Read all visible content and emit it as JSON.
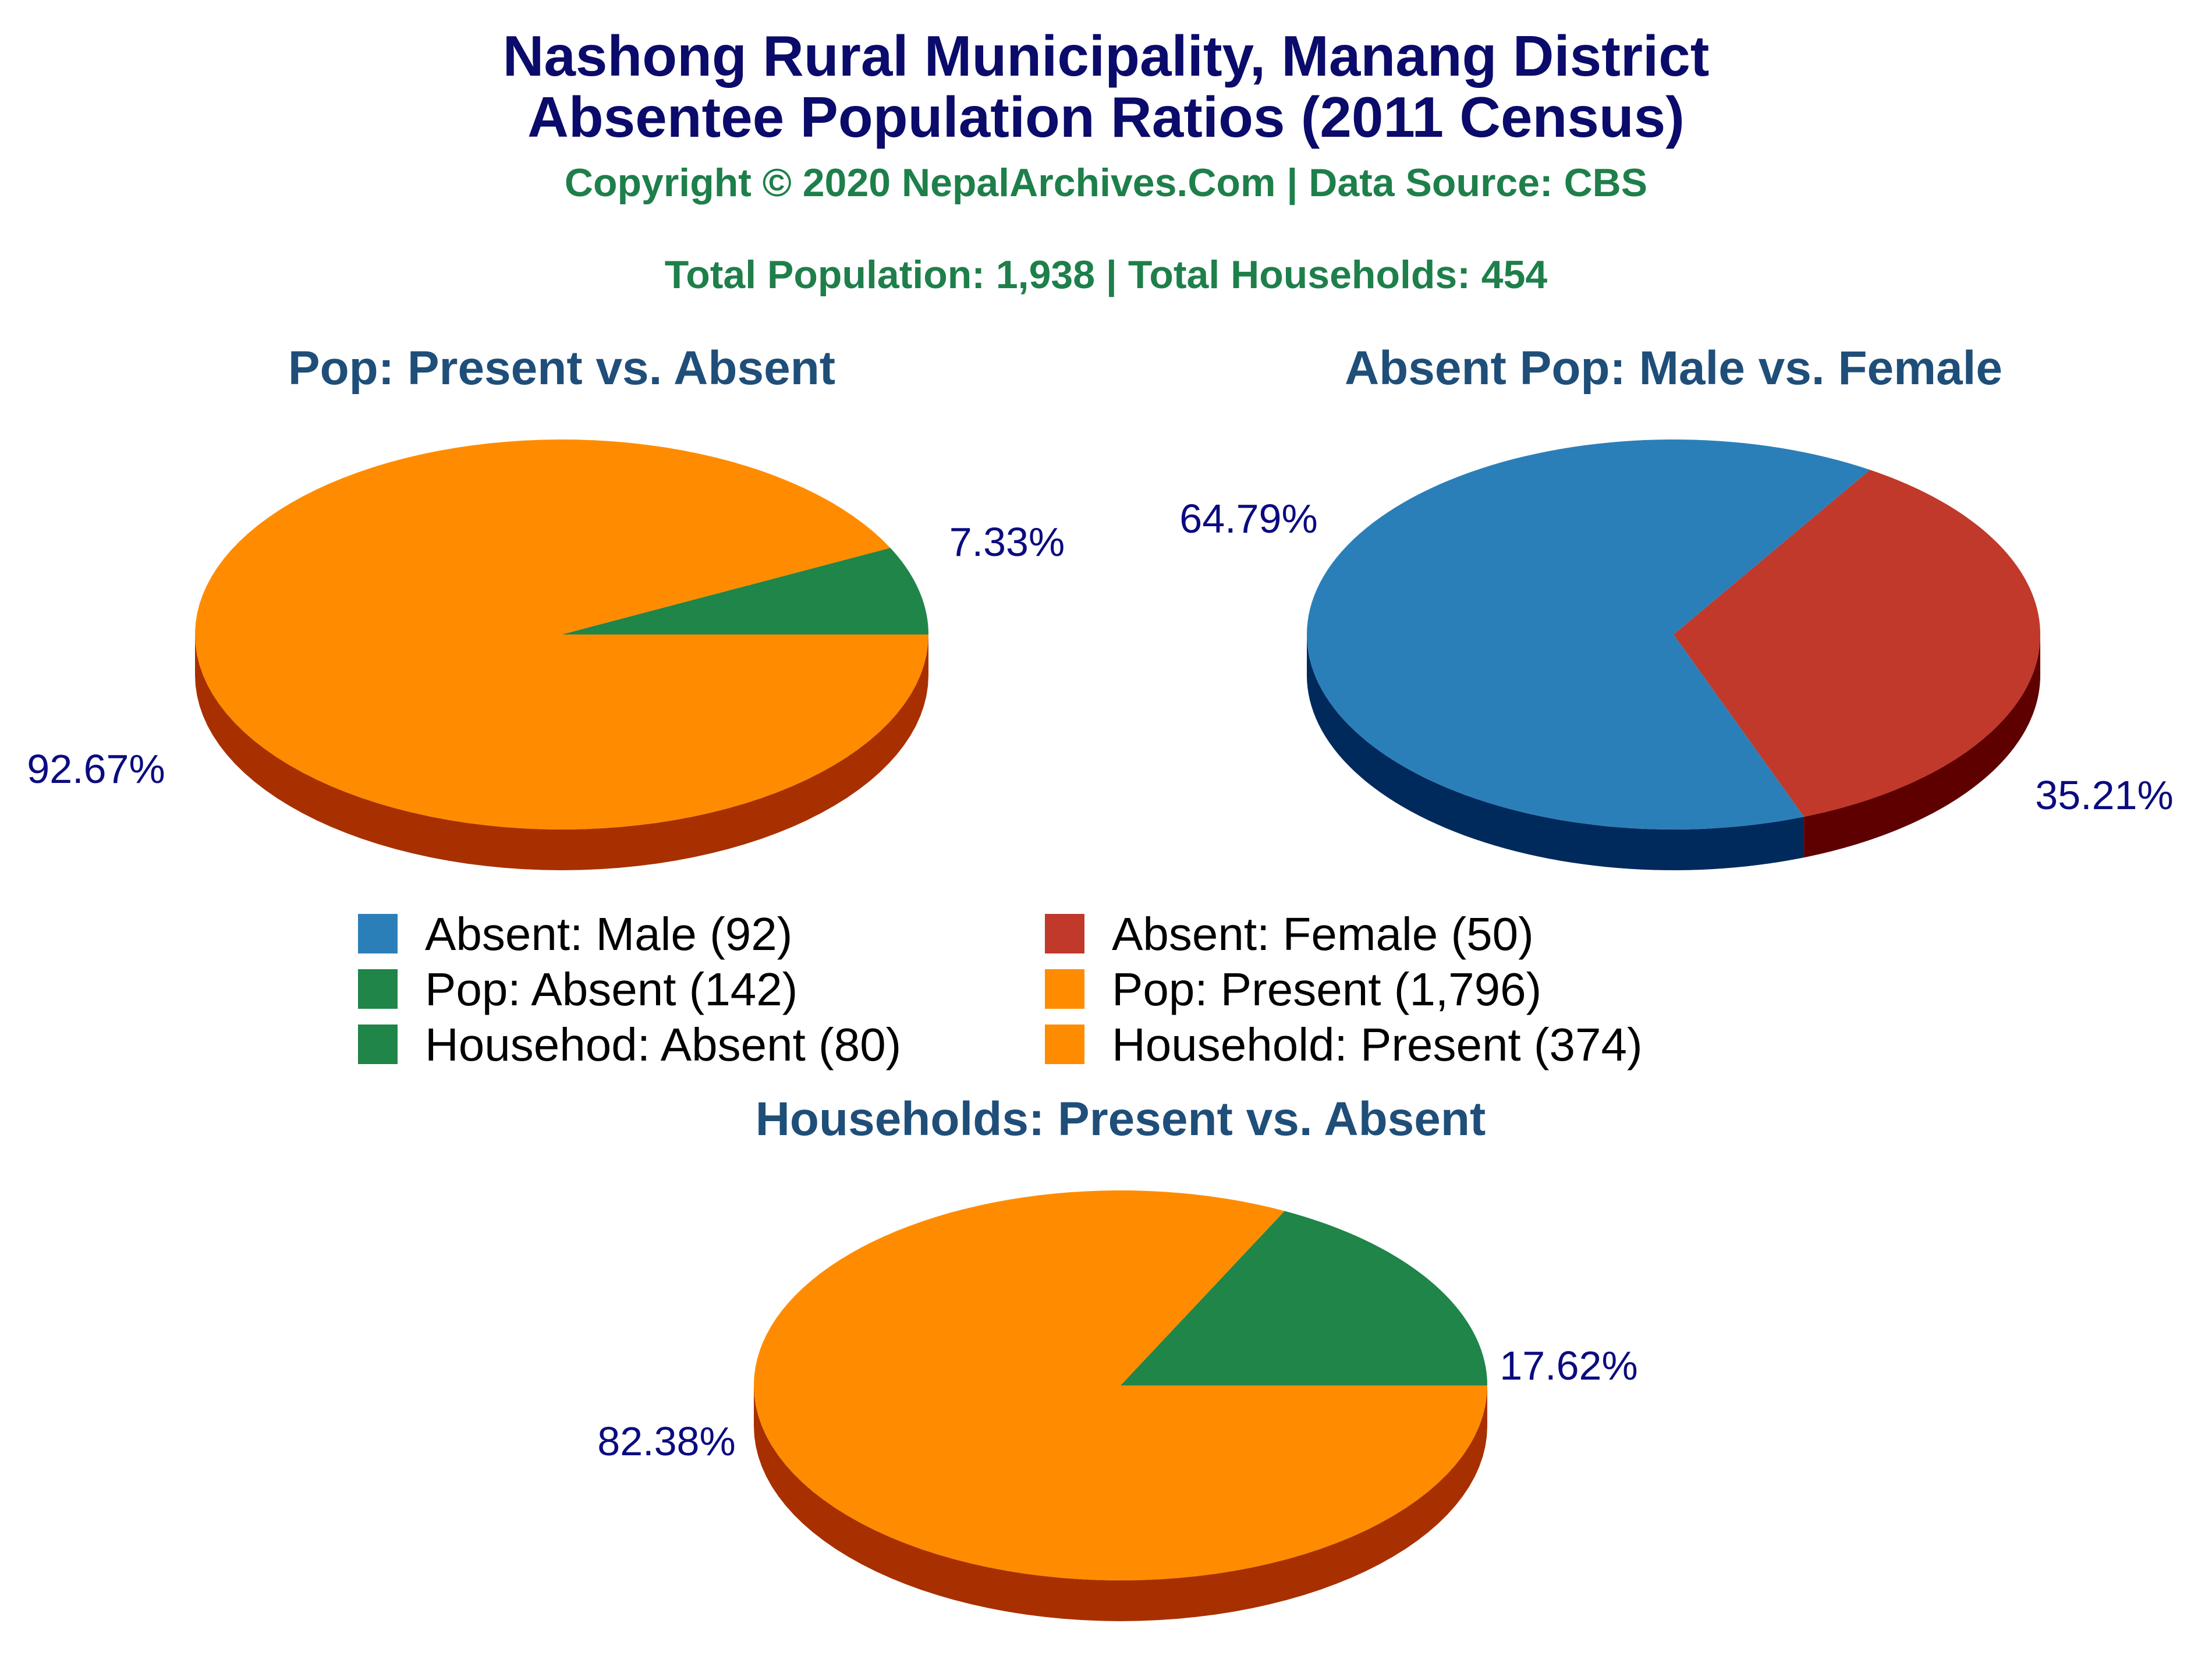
{
  "header": {
    "title_line1": "Nashong Rural Municipality, Manang District",
    "title_line2": "Absentee Population Ratios (2011 Census)",
    "copyright": "Copyright © 2020 NepalArchives.Com | Data Source: CBS",
    "totals": "Total Population: 1,938 | Total Households: 454"
  },
  "colors": {
    "blue": "#2b7fb8",
    "blue_dark": "#002a5c",
    "red": "#c0392b",
    "red_dark": "#5e0000",
    "green": "#1f8548",
    "green_dark": "#0b3a12",
    "orange": "#ff8c00",
    "orange_dark": "#a83000"
  },
  "legend": [
    {
      "label": "Absent: Male (92)",
      "color": "#2b7fb8"
    },
    {
      "label": "Absent: Female (50)",
      "color": "#c0392b"
    },
    {
      "label": "Pop: Absent (142)",
      "color": "#1f8548"
    },
    {
      "label": "Pop: Present (1,796)",
      "color": "#ff8c00"
    },
    {
      "label": "Househod: Absent (80)",
      "color": "#1f8548"
    },
    {
      "label": "Household: Present (374)",
      "color": "#ff8c00"
    }
  ],
  "chart_data": [
    {
      "type": "pie",
      "title": "Pop: Present vs. Absent",
      "slices": [
        {
          "name": "Pop: Absent",
          "value": 142,
          "percent_label": "7.33%",
          "color": "#1f8548",
          "side": "#0b3a12"
        },
        {
          "name": "Pop: Present",
          "value": 1796,
          "percent_label": "92.67%",
          "color": "#ff8c00",
          "side": "#a83000"
        }
      ]
    },
    {
      "type": "pie",
      "title": "Absent Pop: Male vs. Female",
      "slices": [
        {
          "name": "Absent: Male",
          "value": 92,
          "percent_label": "64.79%",
          "color": "#2b7fb8",
          "side": "#002a5c"
        },
        {
          "name": "Absent: Female",
          "value": 50,
          "percent_label": "35.21%",
          "color": "#c0392b",
          "side": "#5e0000"
        }
      ]
    },
    {
      "type": "pie",
      "title": "Households: Present vs. Absent",
      "slices": [
        {
          "name": "Househod: Absent",
          "value": 80,
          "percent_label": "17.62%",
          "color": "#1f8548",
          "side": "#0b3a12"
        },
        {
          "name": "Household: Present",
          "value": 374,
          "percent_label": "82.38%",
          "color": "#ff8c00",
          "side": "#a83000"
        }
      ]
    }
  ]
}
